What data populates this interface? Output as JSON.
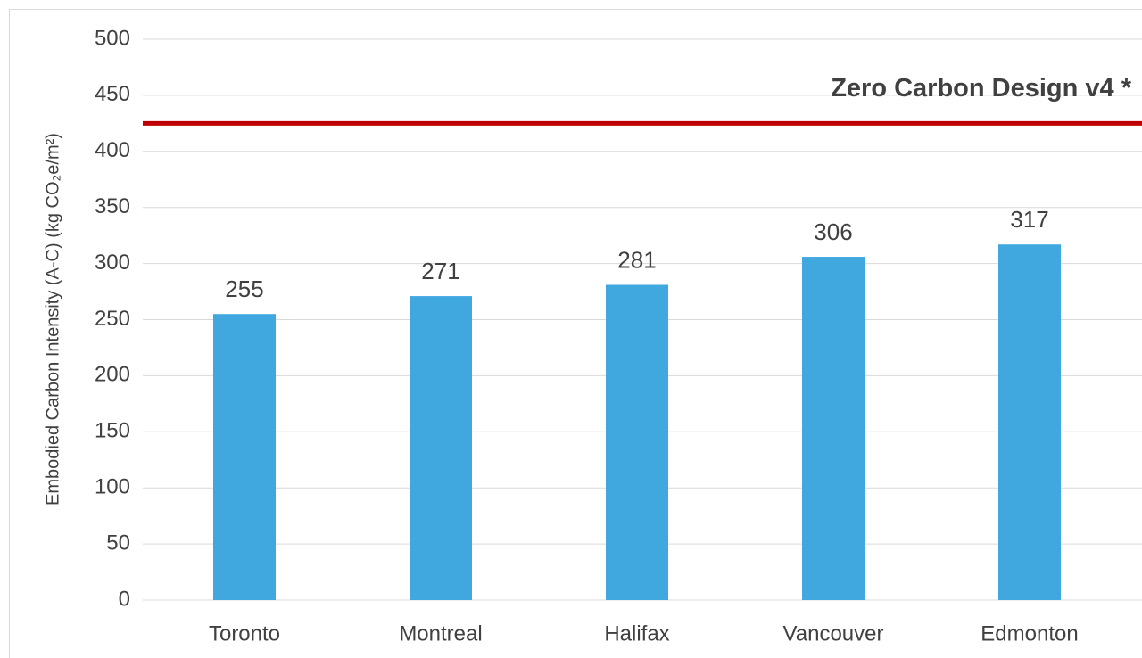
{
  "chart_data": {
    "type": "bar",
    "y_label": "Embodied Carbon Intensity (A-C) (kg CO₂e/m²)",
    "categories": [
      "Toronto",
      "Montreal",
      "Halifax",
      "Vancouver",
      "Edmonton"
    ],
    "values": [
      255,
      271,
      281,
      306,
      317
    ],
    "color": "#41a8df",
    "ylim": [
      0,
      500
    ],
    "yticks": [
      0,
      50,
      100,
      150,
      200,
      250,
      300,
      350,
      400,
      450,
      500
    ],
    "grid": true,
    "reference_line": {
      "value": 425,
      "label": "Zero Carbon Design v4 *",
      "color": "#c00000"
    }
  }
}
